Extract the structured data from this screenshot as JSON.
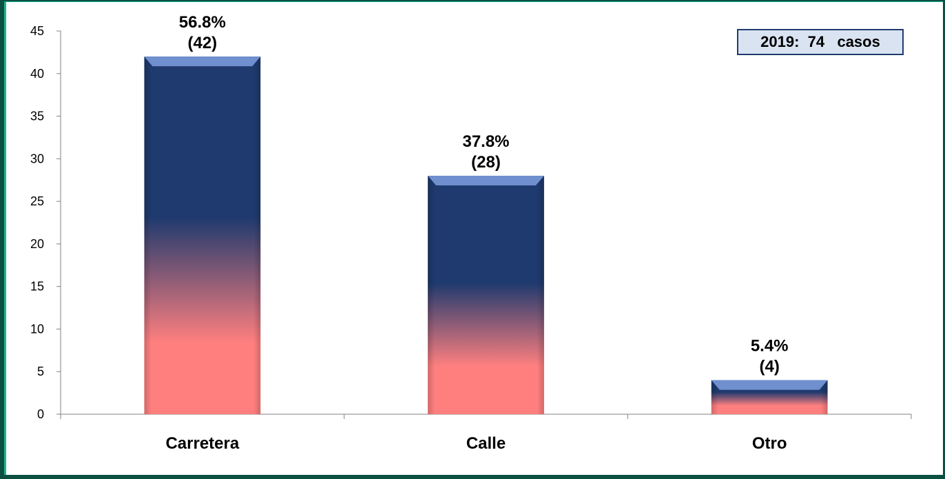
{
  "chart_data": {
    "type": "bar",
    "categories": [
      "Carretera",
      "Calle",
      "Otro"
    ],
    "values": [
      42,
      28,
      4
    ],
    "percent_labels": [
      "56.8%",
      "37.8%",
      "5.4%"
    ],
    "count_labels": [
      "(42)",
      "(28)",
      "(4)"
    ],
    "title": "",
    "xlabel": "",
    "ylabel": "",
    "ylim": [
      0,
      45
    ],
    "yticks": [
      0,
      5,
      10,
      15,
      20,
      25,
      30,
      35,
      40,
      45
    ],
    "grid": false,
    "legend": null,
    "annotation": "2019:  74   casos",
    "colors": {
      "bar_top": "#1f3a6e",
      "bar_bottom": "#ff7f7f",
      "bar_cap": "#6f8fcf"
    }
  }
}
